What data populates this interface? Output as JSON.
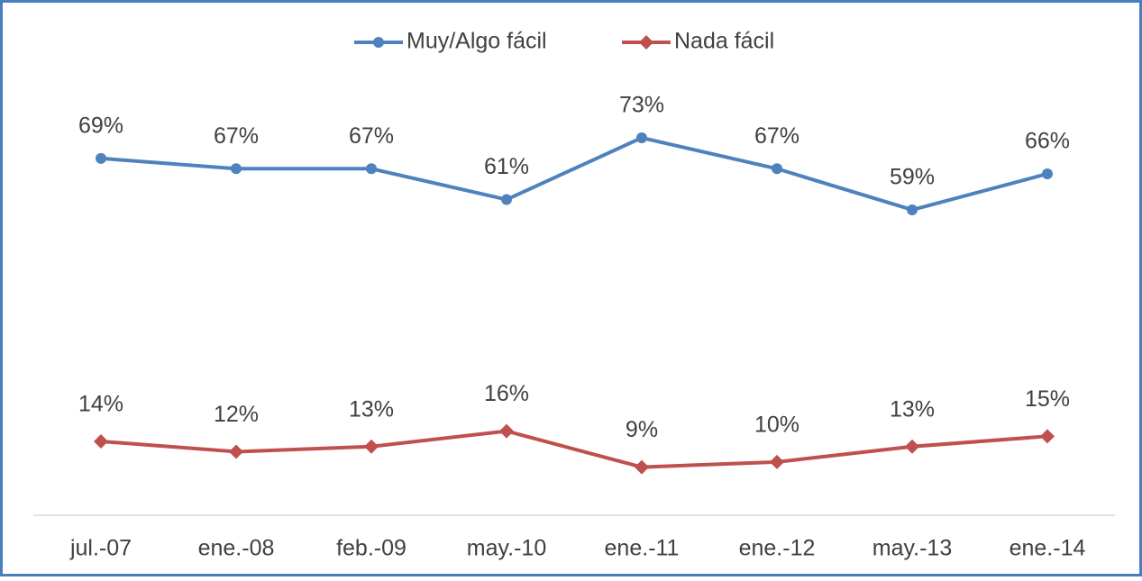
{
  "chart_data": {
    "type": "line",
    "categories": [
      "jul.-07",
      "ene.-08",
      "feb.-09",
      "may.-10",
      "ene.-11",
      "ene.-12",
      "may.-13",
      "ene.-14"
    ],
    "ylim": [
      0,
      80
    ],
    "legend": "top",
    "series": [
      {
        "name": "Muy/Algo fácil",
        "color": "#4f81bd",
        "marker": "circle",
        "values": [
          69,
          67,
          67,
          61,
          73,
          67,
          59,
          66
        ],
        "value_labels": [
          "69%",
          "67%",
          "67%",
          "61%",
          "73%",
          "67%",
          "59%",
          "66%"
        ]
      },
      {
        "name": "Nada fácil",
        "color": "#c0504d",
        "marker": "diamond",
        "values": [
          14,
          12,
          13,
          16,
          9,
          10,
          13,
          15
        ],
        "value_labels": [
          "14%",
          "12%",
          "13%",
          "16%",
          "9%",
          "10%",
          "13%",
          "15%"
        ]
      }
    ]
  }
}
